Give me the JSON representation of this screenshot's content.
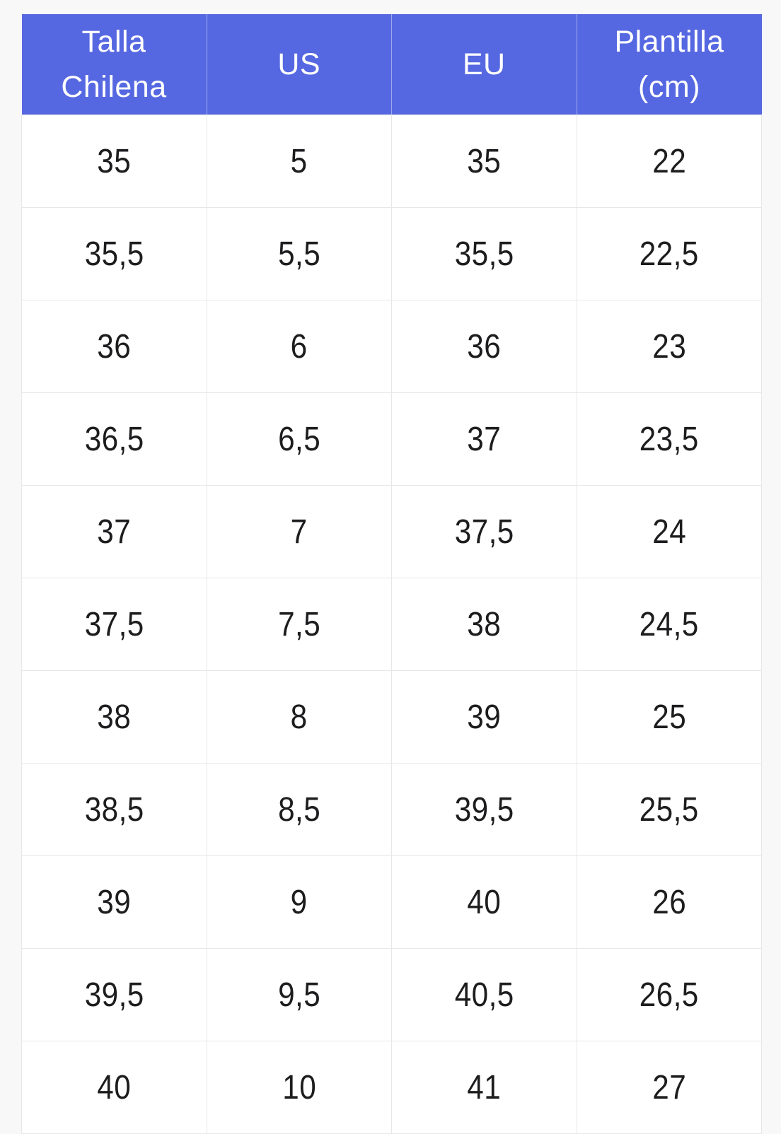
{
  "chart_data": {
    "type": "table",
    "columns": [
      "Talla Chilena",
      "US",
      "EU",
      "Plantilla (cm)"
    ],
    "rows": [
      [
        "35",
        "5",
        "35",
        "22"
      ],
      [
        "35,5",
        "5,5",
        "35,5",
        "22,5"
      ],
      [
        "36",
        "6",
        "36",
        "23"
      ],
      [
        "36,5",
        "6,5",
        "37",
        "23,5"
      ],
      [
        "37",
        "7",
        "37,5",
        "24"
      ],
      [
        "37,5",
        "7,5",
        "38",
        "24,5"
      ],
      [
        "38",
        "8",
        "39",
        "25"
      ],
      [
        "38,5",
        "8,5",
        "39,5",
        "25,5"
      ],
      [
        "39",
        "9",
        "40",
        "26"
      ],
      [
        "39,5",
        "9,5",
        "40,5",
        "26,5"
      ],
      [
        "40",
        "10",
        "41",
        "27"
      ]
    ],
    "layout": {
      "grid": true,
      "header_position": "top"
    }
  },
  "colors": {
    "header_bg": "#5668e1",
    "header_text": "#ffffff",
    "header_divider": "#9fa9ef",
    "cell_bg": "#ffffff",
    "cell_text": "#1d1d1f",
    "grid_line": "#e7e7e7",
    "page_bg": "#f8f8f9"
  }
}
